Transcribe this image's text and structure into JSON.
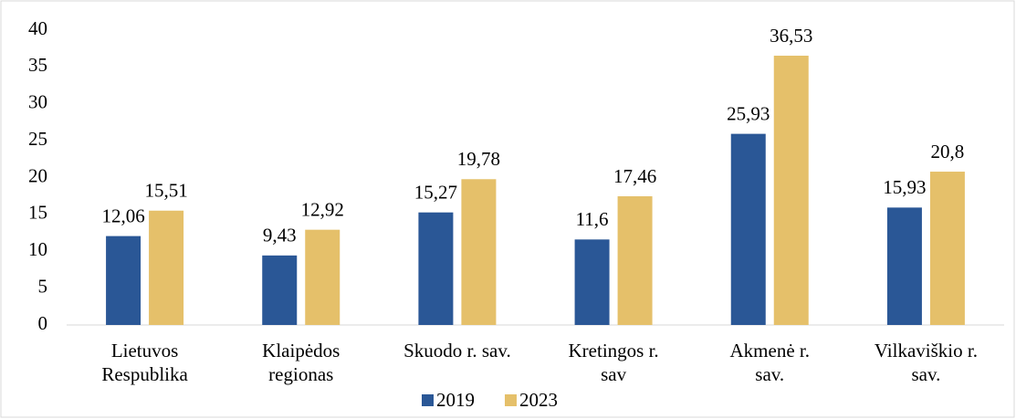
{
  "chart_data": {
    "type": "bar",
    "categories": [
      [
        "Lietuvos",
        "Respublika"
      ],
      [
        "Klaipėdos",
        "regionas"
      ],
      [
        "Skuodo r. sav."
      ],
      [
        "Kretingos r.",
        "sav"
      ],
      [
        "Akmenė r.",
        "sav."
      ],
      [
        "Vilkaviškio r.",
        "sav."
      ]
    ],
    "series": [
      {
        "name": "2019",
        "color": "#2a5796",
        "values": [
          12.06,
          9.43,
          15.27,
          11.6,
          25.93,
          15.93
        ],
        "value_labels": [
          "12,06",
          "9,43",
          "15,27",
          "11,6",
          "25,93",
          "15,93"
        ]
      },
      {
        "name": "2023",
        "color": "#e5c06a",
        "values": [
          15.51,
          12.92,
          19.78,
          17.46,
          36.53,
          20.8
        ],
        "value_labels": [
          "15,51",
          "12,92",
          "19,78",
          "17,46",
          "36,53",
          "20,8"
        ]
      }
    ],
    "ylim": [
      0,
      40
    ],
    "yticks": [
      0,
      5,
      10,
      15,
      20,
      25,
      30,
      35,
      40
    ],
    "grid": false,
    "legend": "bottom"
  }
}
